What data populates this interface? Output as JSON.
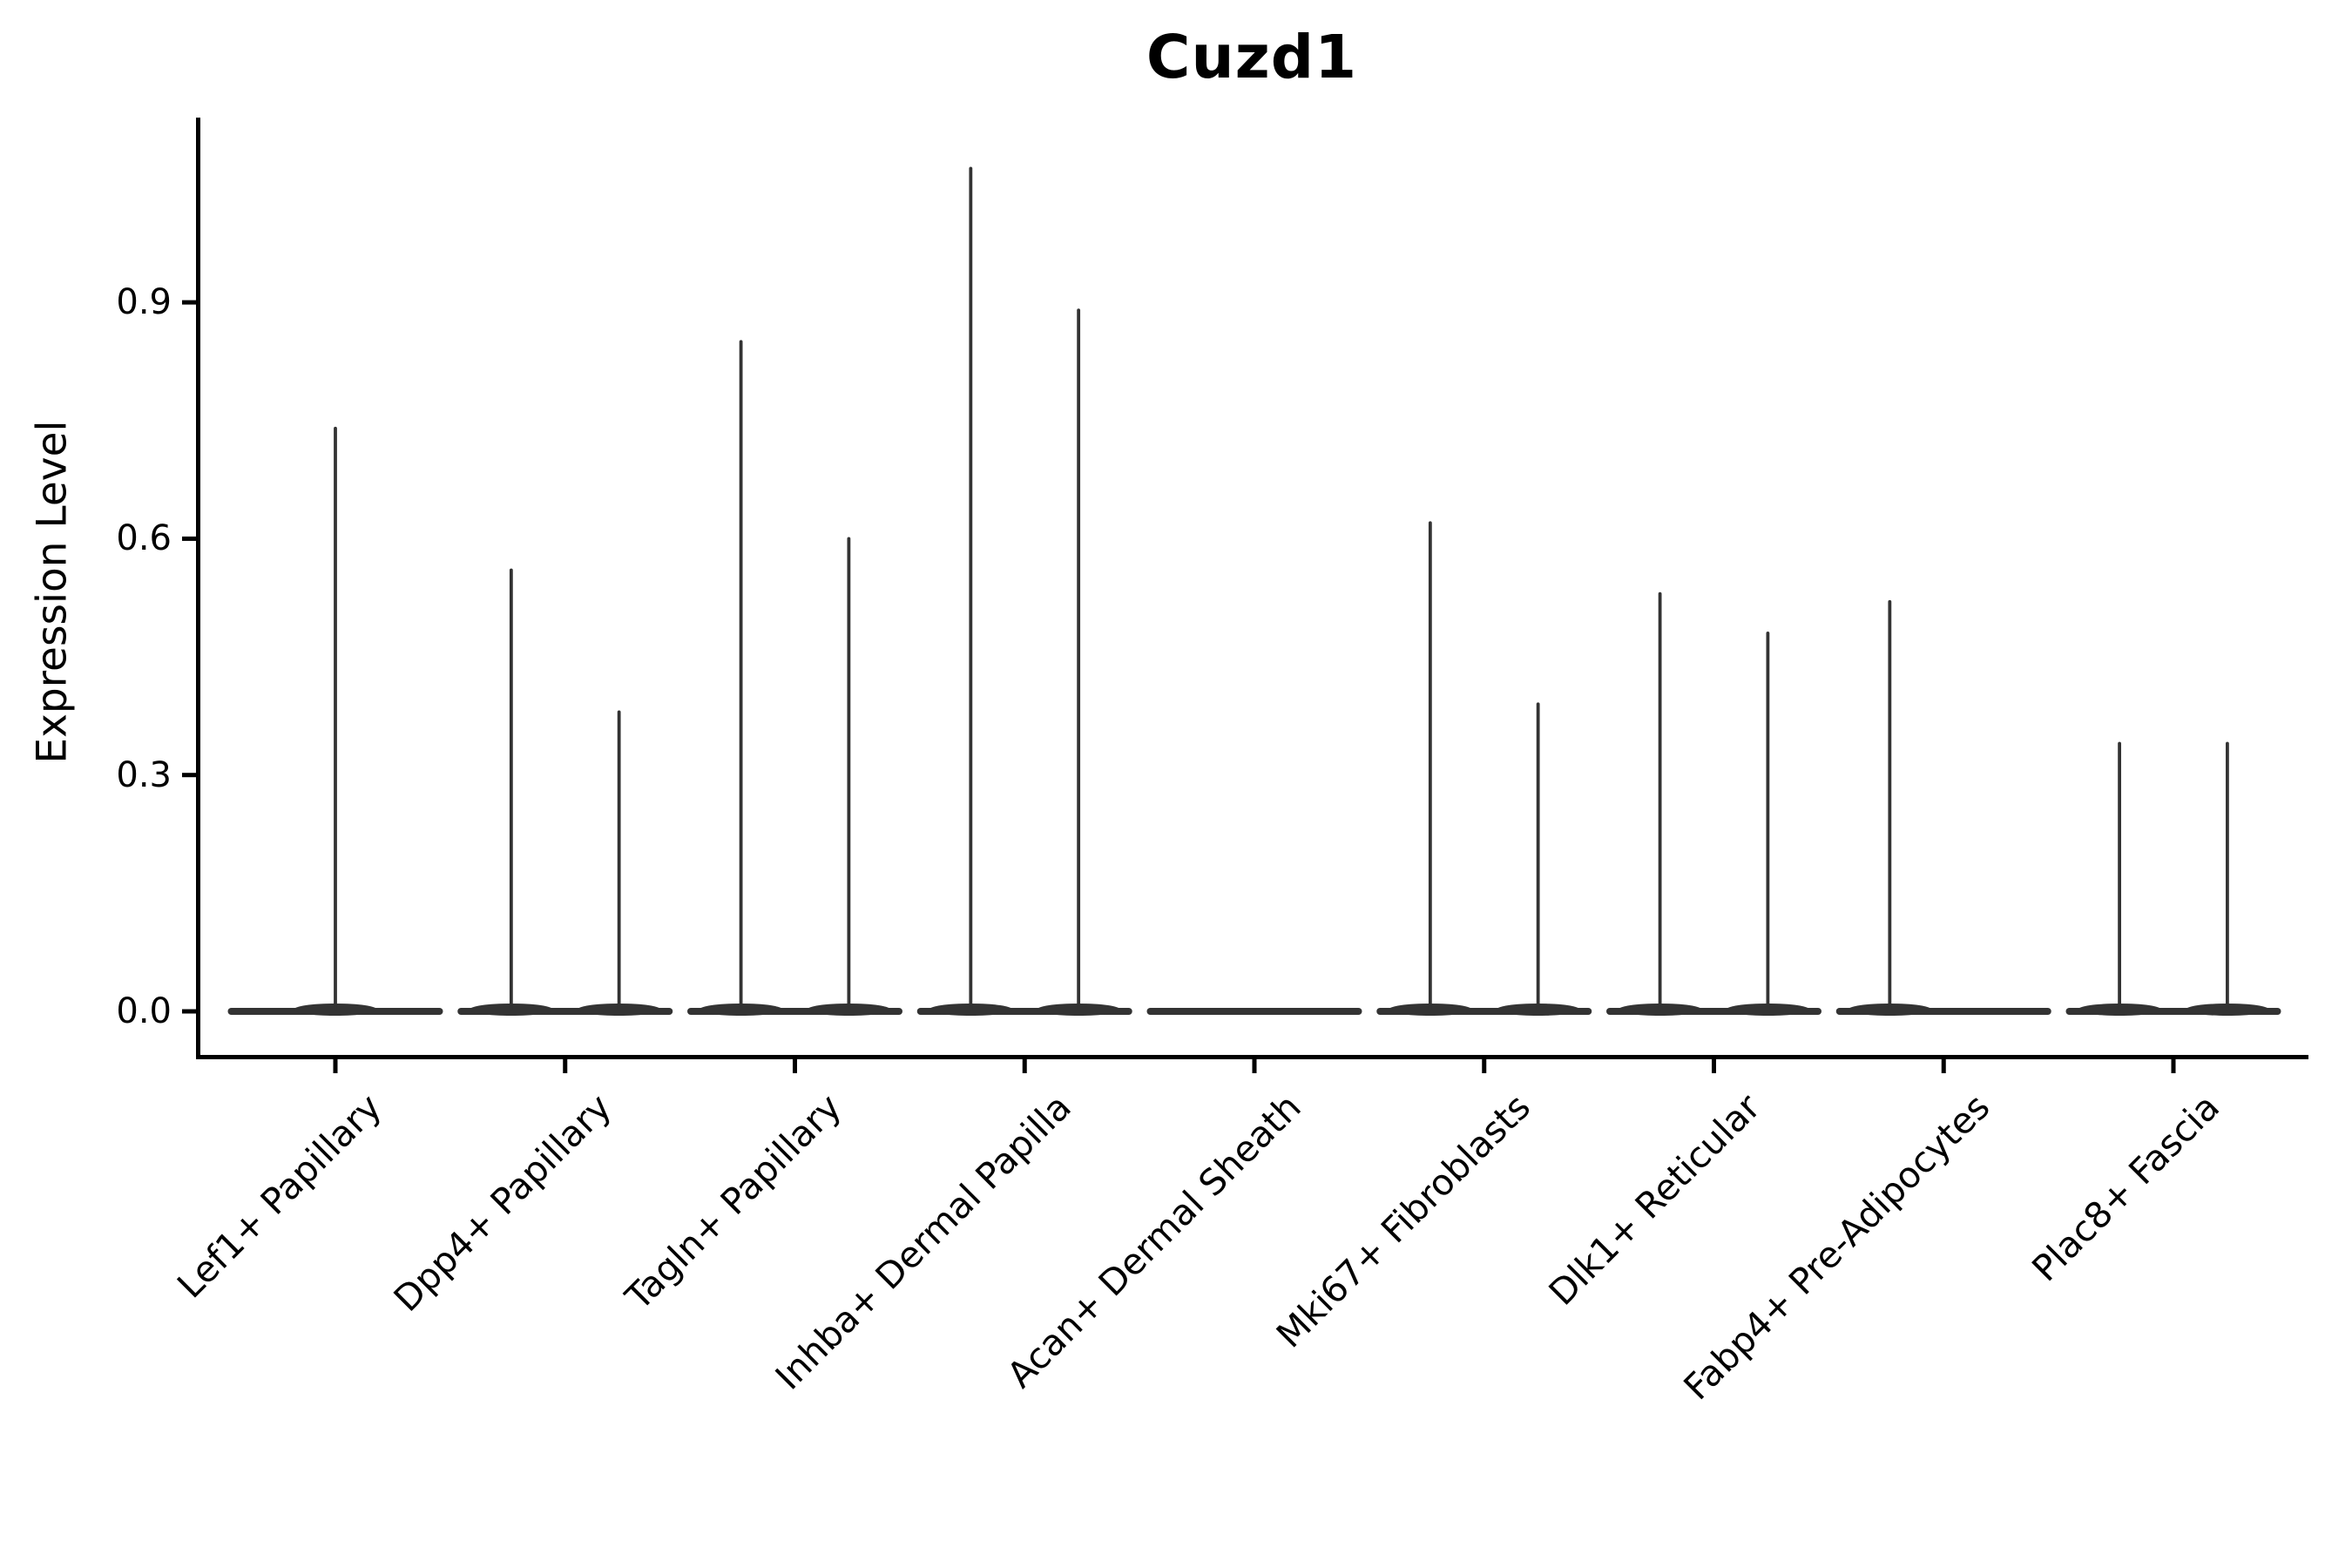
{
  "figure": {
    "title": "Cuzd1",
    "background_color": "#ffffff",
    "text_color": "#000000"
  },
  "axes": {
    "ylabel": "Expression Level",
    "axis_color": "#000000",
    "ytick_labels": [
      "0.0",
      "0.3",
      "0.6",
      "0.9"
    ]
  },
  "chart_data": {
    "type": "violin",
    "title": "Cuzd1",
    "xlabel": "",
    "ylabel": "Expression Level",
    "grid": false,
    "legend_position": "none",
    "violin_color": "#333333",
    "ylim": [
      -0.055,
      1.13
    ],
    "yticks": [
      0.0,
      0.3,
      0.6,
      0.9
    ],
    "baseline_value": 0.0,
    "categories": [
      "Lef1+ Papillary",
      "Dpp4+ Papillary",
      "Tagln+ Papillary",
      "Inhba+ Dermal Papilla",
      "Acan+ Dermal Sheath",
      "Mki67+ Fibroblasts",
      "Dlk1+ Reticular",
      "Fabp4+ Pre-Adipocytes",
      "Plac8+ Fascia"
    ],
    "violins": [
      {
        "category": "Lef1+ Papillary",
        "spikes": [
          {
            "position": "center",
            "peak": 0.74
          }
        ]
      },
      {
        "category": "Dpp4+ Papillary",
        "spikes": [
          {
            "position": "left",
            "peak": 0.56
          },
          {
            "position": "right",
            "peak": 0.38
          }
        ]
      },
      {
        "category": "Tagln+ Papillary",
        "spikes": [
          {
            "position": "left",
            "peak": 0.85
          },
          {
            "position": "right",
            "peak": 0.6
          }
        ]
      },
      {
        "category": "Inhba+ Dermal Papilla",
        "spikes": [
          {
            "position": "left",
            "peak": 1.07
          },
          {
            "position": "right",
            "peak": 0.89
          }
        ]
      },
      {
        "category": "Acan+ Dermal Sheath",
        "spikes": []
      },
      {
        "category": "Mki67+ Fibroblasts",
        "spikes": [
          {
            "position": "left",
            "peak": 0.62
          },
          {
            "position": "right",
            "peak": 0.39
          }
        ]
      },
      {
        "category": "Dlk1+ Reticular",
        "spikes": [
          {
            "position": "left",
            "peak": 0.53
          },
          {
            "position": "right",
            "peak": 0.48
          }
        ]
      },
      {
        "category": "Fabp4+ Pre-Adipocytes",
        "spikes": [
          {
            "position": "left",
            "peak": 0.52
          }
        ]
      },
      {
        "category": "Plac8+ Fascia",
        "spikes": [
          {
            "position": "left",
            "peak": 0.34
          },
          {
            "position": "right",
            "peak": 0.34
          }
        ]
      }
    ]
  }
}
